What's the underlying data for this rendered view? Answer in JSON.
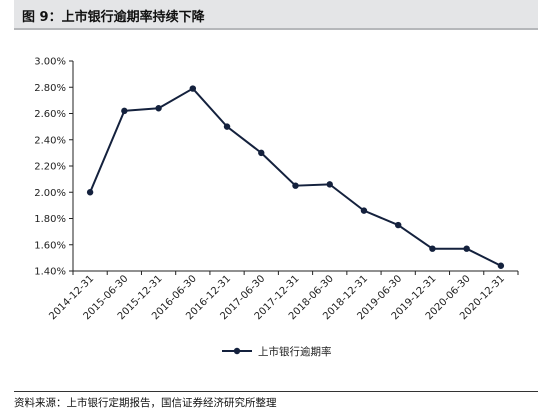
{
  "header": {
    "title": "图 9：上市银行逾期率持续下降"
  },
  "footer": {
    "source": "资料来源：上市银行定期报告，国信证券经济研究所整理"
  },
  "chart_data": {
    "type": "line",
    "title": "",
    "xlabel": "",
    "ylabel": "",
    "ylim": [
      1.4,
      3.0
    ],
    "y_unit": "%",
    "y_ticks": [
      "1.40%",
      "1.60%",
      "1.80%",
      "2.00%",
      "2.20%",
      "2.40%",
      "2.60%",
      "2.80%",
      "3.00%"
    ],
    "x": [
      "2014-12-31",
      "2015-06-30",
      "2015-12-31",
      "2016-06-30",
      "2016-12-31",
      "2017-06-30",
      "2017-12-31",
      "2018-06-30",
      "2018-12-31",
      "2019-06-30",
      "2019-12-31",
      "2020-06-30",
      "2020-12-31"
    ],
    "series": [
      {
        "name": "上市银行逾期率",
        "values": [
          2.0,
          2.62,
          2.64,
          2.79,
          2.5,
          2.3,
          2.05,
          2.06,
          1.86,
          1.75,
          1.57,
          1.57,
          1.44
        ]
      }
    ],
    "grid": false,
    "legend_position": "bottom",
    "line_color": "#14213d"
  }
}
